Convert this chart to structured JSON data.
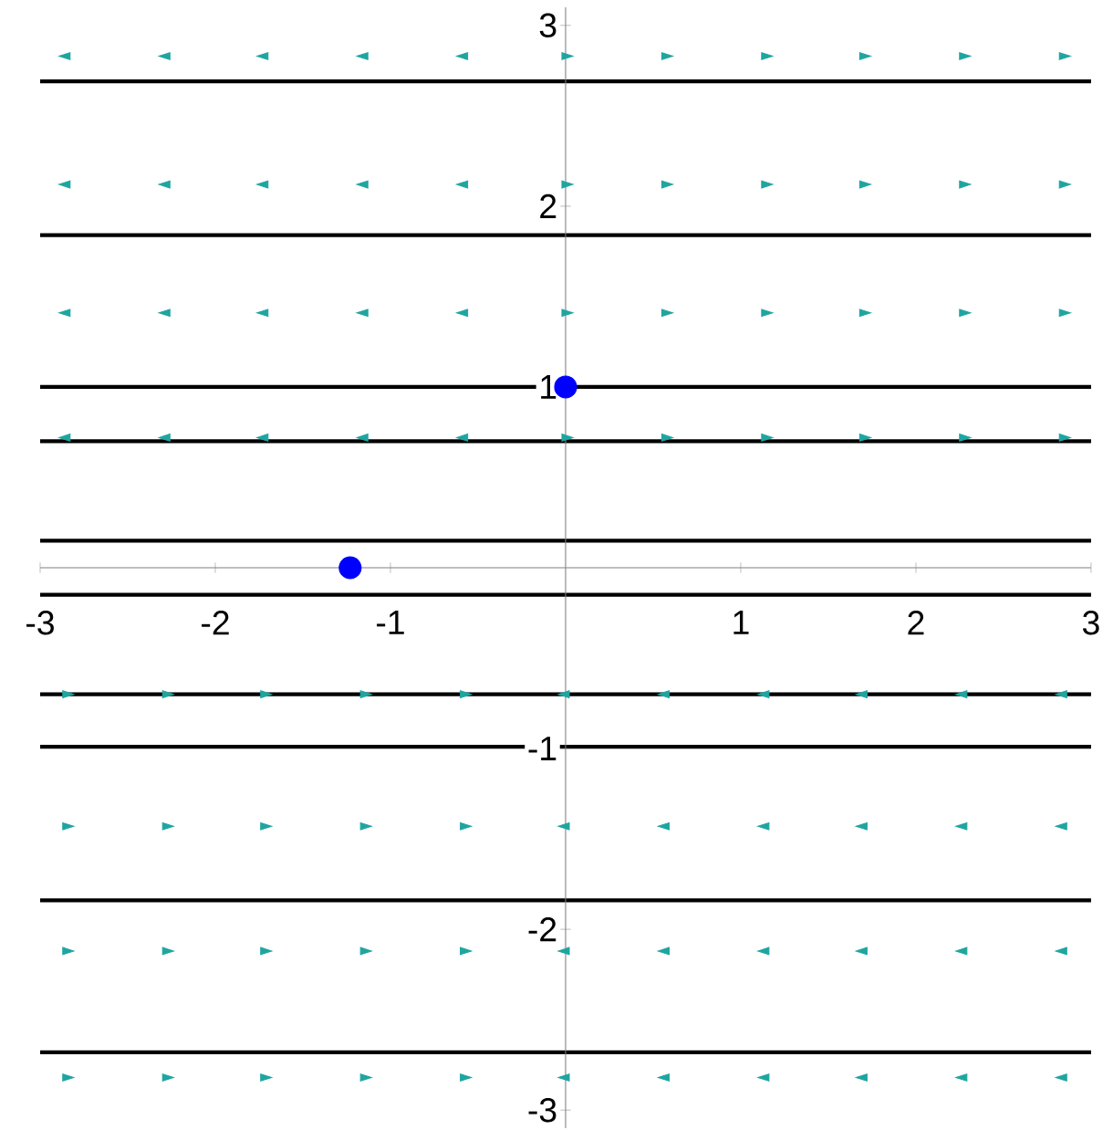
{
  "chart_data": {
    "type": "line",
    "xlim": [
      -3,
      3
    ],
    "ylim": [
      -3.1,
      3.1
    ],
    "xticks": [
      -3,
      -2,
      -1,
      1,
      2,
      3
    ],
    "yticks": [
      -3,
      -2,
      -1,
      1,
      2,
      3
    ],
    "grid": false,
    "series": [
      {
        "color": "#000000",
        "marker": "none",
        "x": [
          -3,
          3
        ],
        "values": [
          2.69,
          2.69
        ]
      },
      {
        "color": "#000000",
        "marker": "none",
        "x": [
          -3,
          3
        ],
        "values": [
          1.84,
          1.84
        ]
      },
      {
        "color": "#000000",
        "marker": "none",
        "x": [
          -3,
          3
        ],
        "values": [
          1.0,
          1.0
        ]
      },
      {
        "color": "#000000",
        "marker": "none",
        "x": [
          -3,
          3
        ],
        "values": [
          0.7,
          0.7
        ]
      },
      {
        "color": "#000000",
        "marker": "none",
        "x": [
          -3,
          3
        ],
        "values": [
          0.15,
          0.15
        ]
      },
      {
        "color": "#000000",
        "marker": "none",
        "x": [
          -3,
          3
        ],
        "values": [
          -0.15,
          -0.15
        ]
      },
      {
        "color": "#000000",
        "marker": "none",
        "x": [
          -3,
          3
        ],
        "values": [
          -0.7,
          -0.7
        ]
      },
      {
        "color": "#000000",
        "marker": "none",
        "x": [
          -3,
          3
        ],
        "values": [
          -0.99,
          -0.99
        ]
      },
      {
        "color": "#000000",
        "marker": "none",
        "x": [
          -3,
          3
        ],
        "values": [
          -1.84,
          -1.84
        ]
      },
      {
        "color": "#000000",
        "marker": "none",
        "x": [
          -3,
          3
        ],
        "values": [
          -2.68,
          -2.68
        ]
      },
      {
        "type": "scatter",
        "color": "#1fa5a0",
        "marker": "triangle",
        "x": [
          0,
          0.57,
          1.14,
          1.7,
          2.27,
          2.84,
          0,
          0.57,
          1.14,
          1.7,
          2.27,
          2.84,
          0,
          0.57,
          1.14,
          1.7,
          2.27,
          2.84,
          0,
          0.57,
          1.14,
          1.7,
          2.27,
          2.84,
          -2.85,
          -2.28,
          -1.72,
          -1.15,
          -0.58,
          -2.85,
          -2.28,
          -1.72,
          -1.15,
          -0.58,
          -2.85,
          -2.28,
          -1.72,
          -1.15,
          -0.58,
          -2.85,
          -2.28,
          -1.72,
          -1.15,
          -0.58
        ],
        "values": [
          2.83,
          2.83,
          2.83,
          2.83,
          2.83,
          2.83,
          2.12,
          2.12,
          2.12,
          2.12,
          2.12,
          2.12,
          1.41,
          1.41,
          1.41,
          1.41,
          1.41,
          1.41,
          0.72,
          0.72,
          0.72,
          0.72,
          0.72,
          0.72,
          -0.7,
          -0.7,
          -0.7,
          -0.7,
          -0.7,
          -1.43,
          -1.43,
          -1.43,
          -1.43,
          -1.43,
          -2.12,
          -2.12,
          -2.12,
          -2.12,
          -2.12,
          -2.82,
          -2.82,
          -2.82,
          -2.82,
          -2.82
        ]
      },
      {
        "type": "scatter",
        "color": "#1fa5a0",
        "marker": "triangle",
        "x": [
          -2.85,
          -2.28,
          -1.72,
          -1.15,
          -0.58,
          -2.85,
          -2.28,
          -1.72,
          -1.15,
          -0.58,
          -2.85,
          -2.28,
          -1.72,
          -1.15,
          -0.58,
          -2.85,
          -2.28,
          -1.72,
          -1.15,
          -0.58,
          0,
          0.57,
          1.14,
          1.7,
          2.27,
          2.84,
          0,
          0.57,
          1.14,
          1.7,
          2.27,
          2.84,
          0,
          0.57,
          1.14,
          1.7,
          2.27,
          2.84,
          0,
          0.57,
          1.14,
          1.7,
          2.27,
          2.84
        ],
        "values": [
          2.83,
          2.83,
          2.83,
          2.83,
          2.83,
          2.12,
          2.12,
          2.12,
          2.12,
          2.12,
          1.41,
          1.41,
          1.41,
          1.41,
          1.41,
          0.72,
          0.72,
          0.72,
          0.72,
          0.72,
          -0.7,
          -0.7,
          -0.7,
          -0.7,
          -0.7,
          -0.7,
          -1.43,
          -1.43,
          -1.43,
          -1.43,
          -1.43,
          -1.43,
          -2.12,
          -2.12,
          -2.12,
          -2.12,
          -2.12,
          -2.12,
          -2.82,
          -2.82,
          -2.82,
          -2.82,
          -2.82,
          -2.82
        ]
      },
      {
        "type": "scatter",
        "color": "#0000ff",
        "marker": "circle",
        "x": [
          0,
          -1.23
        ],
        "values": [
          1,
          0
        ]
      }
    ]
  }
}
